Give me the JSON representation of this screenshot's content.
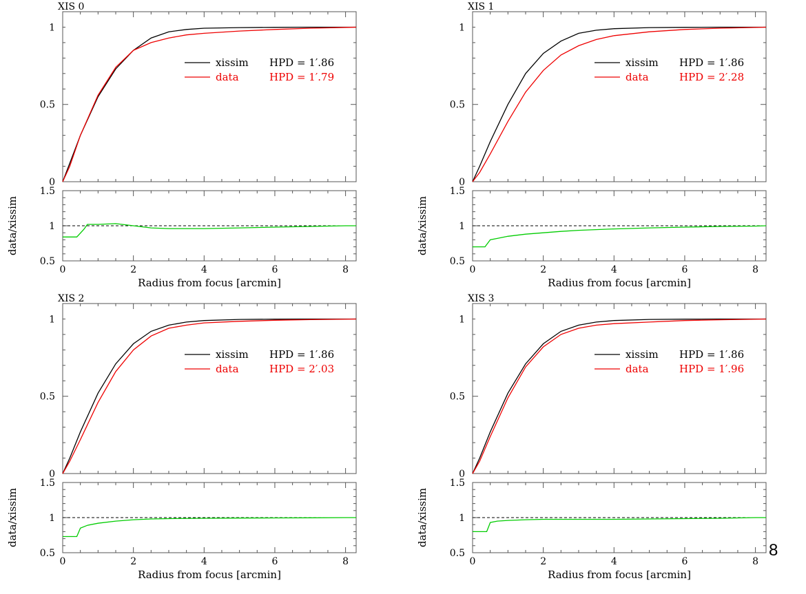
{
  "page_number": "8",
  "colors": {
    "sim": "#000000",
    "data": "#ee0000",
    "ratio": "#00cc00",
    "frame": "#555555"
  },
  "chart_data": [
    {
      "type": "line",
      "title": "XIS 0",
      "xlabel": "Radius from focus [arcmin]",
      "xlim": [
        0,
        8.3
      ],
      "xticks": [
        "0",
        "2",
        "4",
        "6",
        "8"
      ],
      "upper": {
        "ylim": [
          0,
          1.1
        ],
        "yticks": [
          "0",
          "0.5",
          "1"
        ],
        "series": [
          {
            "name": "xissim",
            "hpd": "HPD = 1′.86",
            "color": "#000000",
            "x": [
              0,
              0.2,
              0.5,
              1,
              1.5,
              2,
              2.5,
              3,
              3.5,
              4,
              5,
              6,
              7,
              8.3
            ],
            "y": [
              0,
              0.12,
              0.3,
              0.55,
              0.73,
              0.85,
              0.93,
              0.97,
              0.985,
              0.993,
              0.997,
              0.999,
              1.0,
              1.0
            ]
          },
          {
            "name": "data",
            "hpd": "HPD = 1′.79",
            "color": "#ee0000",
            "x": [
              0,
              0.2,
              0.5,
              1,
              1.5,
              2,
              2.5,
              3,
              3.5,
              4,
              5,
              6,
              7,
              8.3
            ],
            "y": [
              0,
              0.1,
              0.3,
              0.56,
              0.74,
              0.85,
              0.9,
              0.93,
              0.95,
              0.96,
              0.975,
              0.985,
              0.993,
              1.0
            ]
          }
        ]
      },
      "lower": {
        "ylabel": "data/xissim",
        "ylim": [
          0.5,
          1.5
        ],
        "yticks": [
          "0.5",
          "1",
          "1.5"
        ],
        "x": [
          0,
          0.2,
          0.4,
          0.6,
          0.7,
          1,
          1.5,
          2,
          2.5,
          3,
          4,
          5,
          6,
          7,
          8,
          8.3
        ],
        "y": [
          0.84,
          0.84,
          0.84,
          0.95,
          1.02,
          1.02,
          1.03,
          1.0,
          0.97,
          0.96,
          0.96,
          0.97,
          0.98,
          0.99,
          1.0,
          1.0
        ]
      }
    },
    {
      "type": "line",
      "title": "XIS 1",
      "xlabel": "Radius from focus [arcmin]",
      "xlim": [
        0,
        8.3
      ],
      "xticks": [
        "0",
        "2",
        "4",
        "6",
        "8"
      ],
      "upper": {
        "ylim": [
          0,
          1.1
        ],
        "yticks": [
          "0",
          "0.5",
          "1"
        ],
        "series": [
          {
            "name": "xissim",
            "hpd": "HPD = 1′.86",
            "color": "#000000",
            "x": [
              0,
              0.2,
              0.5,
              1,
              1.5,
              2,
              2.5,
              3,
              3.5,
              4,
              5,
              6,
              7,
              8.3
            ],
            "y": [
              0,
              0.1,
              0.26,
              0.5,
              0.7,
              0.83,
              0.91,
              0.96,
              0.98,
              0.99,
              0.997,
              0.999,
              1.0,
              1.0
            ]
          },
          {
            "name": "data",
            "hpd": "HPD = 2′.28",
            "color": "#ee0000",
            "x": [
              0,
              0.2,
              0.5,
              1,
              1.5,
              2,
              2.5,
              3,
              3.5,
              4,
              5,
              6,
              7,
              8.3
            ],
            "y": [
              0,
              0.06,
              0.18,
              0.39,
              0.58,
              0.72,
              0.82,
              0.88,
              0.92,
              0.945,
              0.97,
              0.985,
              0.993,
              1.0
            ]
          }
        ]
      },
      "lower": {
        "ylabel": "data/xissim",
        "ylim": [
          0.5,
          1.5
        ],
        "yticks": [
          "0.5",
          "1",
          "1.5"
        ],
        "x": [
          0,
          0.2,
          0.35,
          0.5,
          0.7,
          1,
          1.5,
          2,
          2.5,
          3,
          4,
          5,
          6,
          7,
          8,
          8.3
        ],
        "y": [
          0.7,
          0.7,
          0.7,
          0.8,
          0.82,
          0.85,
          0.88,
          0.9,
          0.92,
          0.935,
          0.955,
          0.97,
          0.98,
          0.99,
          0.995,
          1.0
        ]
      }
    },
    {
      "type": "line",
      "title": "XIS 2",
      "xlabel": "Radius from focus [arcmin]",
      "xlim": [
        0,
        8.3
      ],
      "xticks": [
        "0",
        "2",
        "4",
        "6",
        "8"
      ],
      "upper": {
        "ylim": [
          0,
          1.1
        ],
        "yticks": [
          "0",
          "0.5",
          "1"
        ],
        "series": [
          {
            "name": "xissim",
            "hpd": "HPD = 1′.86",
            "color": "#000000",
            "x": [
              0,
              0.2,
              0.5,
              1,
              1.5,
              2,
              2.5,
              3,
              3.5,
              4,
              5,
              6,
              7,
              8.3
            ],
            "y": [
              0,
              0.1,
              0.27,
              0.52,
              0.71,
              0.84,
              0.92,
              0.96,
              0.98,
              0.99,
              0.997,
              0.999,
              1.0,
              1.0
            ]
          },
          {
            "name": "data",
            "hpd": "HPD = 2′.03",
            "color": "#ee0000",
            "x": [
              0,
              0.2,
              0.5,
              1,
              1.5,
              2,
              2.5,
              3,
              3.5,
              4,
              5,
              6,
              7,
              8.3
            ],
            "y": [
              0,
              0.08,
              0.22,
              0.46,
              0.66,
              0.8,
              0.89,
              0.94,
              0.96,
              0.975,
              0.985,
              0.992,
              0.996,
              1.0
            ]
          }
        ]
      },
      "lower": {
        "ylabel": "data/xissim",
        "ylim": [
          0.5,
          1.5
        ],
        "yticks": [
          "0.5",
          "1",
          "1.5"
        ],
        "x": [
          0,
          0.2,
          0.4,
          0.5,
          0.7,
          1,
          1.5,
          2,
          2.5,
          3,
          4,
          5,
          6,
          7,
          8,
          8.3
        ],
        "y": [
          0.73,
          0.73,
          0.73,
          0.85,
          0.89,
          0.92,
          0.95,
          0.97,
          0.98,
          0.985,
          0.99,
          0.993,
          0.995,
          0.997,
          1.0,
          1.0
        ]
      }
    },
    {
      "type": "line",
      "title": "XIS 3",
      "xlabel": "Radius from focus [arcmin]",
      "xlim": [
        0,
        8.3
      ],
      "xticks": [
        "0",
        "2",
        "4",
        "6",
        "8"
      ],
      "upper": {
        "ylim": [
          0,
          1.1
        ],
        "yticks": [
          "0",
          "0.5",
          "1"
        ],
        "series": [
          {
            "name": "xissim",
            "hpd": "HPD = 1′.86",
            "color": "#000000",
            "x": [
              0,
              0.2,
              0.5,
              1,
              1.5,
              2,
              2.5,
              3,
              3.5,
              4,
              5,
              6,
              7,
              8.3
            ],
            "y": [
              0,
              0.1,
              0.27,
              0.52,
              0.71,
              0.84,
              0.92,
              0.96,
              0.98,
              0.99,
              0.997,
              0.999,
              1.0,
              1.0
            ]
          },
          {
            "name": "data",
            "hpd": "HPD = 1′.96",
            "color": "#ee0000",
            "x": [
              0,
              0.2,
              0.5,
              1,
              1.5,
              2,
              2.5,
              3,
              3.5,
              4,
              5,
              6,
              7,
              8.3
            ],
            "y": [
              0,
              0.08,
              0.24,
              0.49,
              0.69,
              0.82,
              0.9,
              0.94,
              0.96,
              0.97,
              0.98,
              0.99,
              0.995,
              1.0
            ]
          }
        ]
      },
      "lower": {
        "ylabel": "data/xissim",
        "ylim": [
          0.5,
          1.5
        ],
        "yticks": [
          "0.5",
          "1",
          "1.5"
        ],
        "x": [
          0,
          0.2,
          0.4,
          0.5,
          0.7,
          1,
          1.5,
          2,
          2.5,
          3,
          4,
          5,
          6,
          7,
          8,
          8.3
        ],
        "y": [
          0.8,
          0.8,
          0.8,
          0.93,
          0.95,
          0.96,
          0.97,
          0.975,
          0.975,
          0.975,
          0.975,
          0.98,
          0.985,
          0.99,
          1.0,
          1.0
        ]
      }
    }
  ]
}
